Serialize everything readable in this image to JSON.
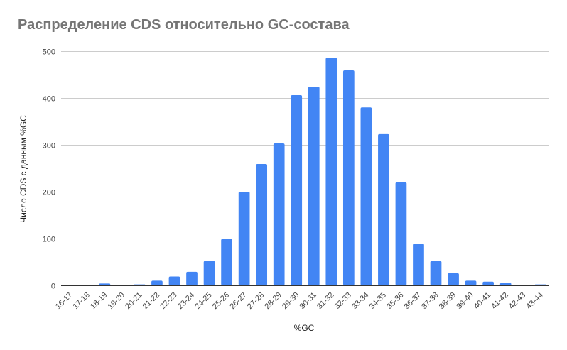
{
  "chart_data": {
    "type": "bar",
    "title": "Распределение CDS относительно GC-состава",
    "xlabel": "%GC",
    "ylabel": "Число CDS с данным %GC",
    "ylim": [
      0,
      500
    ],
    "yticks": [
      0,
      100,
      200,
      300,
      400,
      500
    ],
    "grid": true,
    "legend": "none",
    "bar_color": "#4285f4",
    "categories": [
      "16-17",
      "17-18",
      "18-19",
      "19-20",
      "20-21",
      "21-22",
      "22-23",
      "23-24",
      "24-25",
      "25-26",
      "26-27",
      "27-28",
      "28-29",
      "29-30",
      "30-31",
      "31-32",
      "32-33",
      "33-34",
      "34-35",
      "35-36",
      "36-37",
      "37-38",
      "38-39",
      "39-40",
      "40-41",
      "41-42",
      "42-43",
      "43-44"
    ],
    "values": [
      1,
      0,
      4,
      1,
      2,
      10,
      19,
      29,
      52,
      99,
      200,
      259,
      303,
      406,
      424,
      486,
      459,
      380,
      323,
      220,
      89,
      52,
      26,
      10,
      8,
      5,
      0,
      2
    ]
  }
}
